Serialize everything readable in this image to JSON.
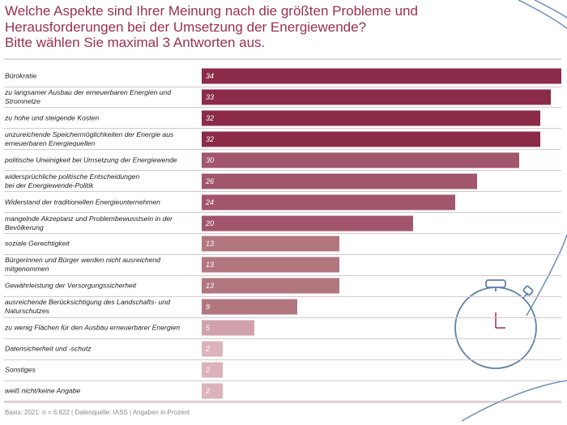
{
  "chart_data": {
    "type": "bar",
    "orientation": "horizontal",
    "title": "Welche Aspekte sind Ihrer Meinung nach die größten Probleme und\nHerausforderungen bei der Umsetzung der Energiewende?\nBitte wählen Sie maximal 3 Antworten aus.",
    "categories": [
      "Bürokratie",
      "zu langsamer Ausbau der erneuerbaren Energien und Stromnetze",
      "zu hohe und steigende Kosten",
      "unzureichende Speichermöglichkeiten der Energie aus\nerneuerbaren Energiequellen",
      "politische Uneinigkeit bei Umsetzung der Energiewende",
      "widersprüchliche politische Entscheidungen\nbei der Energiewende-Politik",
      "Widerstand der traditionellen Energieunternehmen",
      "mangelnde Akzeptanz und Problembewusstsein in der Bevölkerung",
      "soziale Gerechtigkeit",
      "Bürgerinnen und Bürger werden nicht ausreichend mitgenommen",
      "Gewährleistung der Versorgungssicherheit",
      "ausreichende Berücksichtigung des Landschafts- und Naturschutzes",
      "zu wenig Flächen für den Ausbau erneuerbarer Energien",
      "Datensicherheit und -schutz",
      "Sonstiges",
      "weiß nicht/keine Angabe"
    ],
    "values": [
      34,
      33,
      32,
      32,
      30,
      26,
      24,
      20,
      13,
      13,
      13,
      9,
      5,
      2,
      2,
      2
    ],
    "colors": [
      "#8b2b47",
      "#8b2b47",
      "#8b2b47",
      "#8b2b47",
      "#a2566b",
      "#a2566b",
      "#a2566b",
      "#a2566b",
      "#b2767f",
      "#b2767f",
      "#b2767f",
      "#b2767f",
      "#d1a2ab",
      "#dcb3ba",
      "#dcb3ba",
      "#dcb3ba"
    ],
    "footer": "Basis: 2021: n = 6.822 | Datenquelle: IASS | Angaben in Prozent"
  }
}
